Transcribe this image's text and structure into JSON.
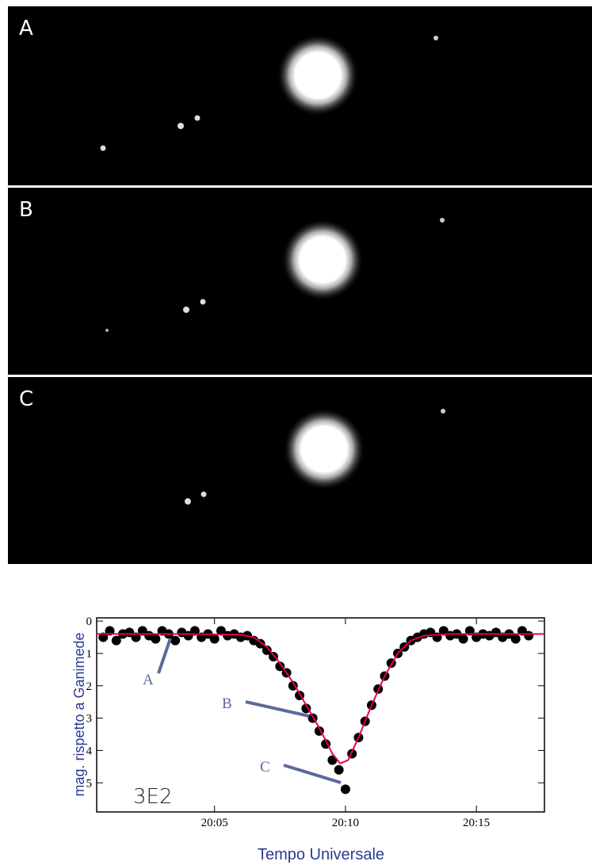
{
  "panels": [
    "A",
    "B",
    "C"
  ],
  "chart_data": {
    "type": "scatter",
    "xlabel": "Tempo Universale",
    "ylabel": "mag. rispetto a Ganimede",
    "annotations": [
      "A",
      "B",
      "C",
      "3E2"
    ],
    "xlim": [
      0.5,
      17.6
    ],
    "ylim": [
      5.9,
      -0.1
    ],
    "xticks": [
      {
        "value": 5,
        "label": "20:05"
      },
      {
        "value": 10,
        "label": "20:10"
      },
      {
        "value": 15,
        "label": "20:15"
      }
    ],
    "yticks": [
      0,
      1,
      2,
      3,
      4,
      5
    ],
    "series": [
      {
        "type": "scatter",
        "color": "#000000",
        "x": [
          0.75,
          1,
          1.25,
          1.5,
          1.75,
          2,
          2.25,
          2.5,
          2.75,
          3,
          3.25,
          3.5,
          3.75,
          4,
          4.25,
          4.5,
          4.75,
          5,
          5.25,
          5.5,
          5.75,
          6,
          6.25,
          6.5,
          6.75,
          7,
          7.25,
          7.5,
          7.75,
          8,
          8.25,
          8.5,
          8.75,
          9,
          9.25,
          9.5,
          9.75,
          10,
          10.25,
          10.5,
          10.75,
          11,
          11.25,
          11.5,
          11.75,
          12,
          12.25,
          12.5,
          12.75,
          13,
          13.25,
          13.5,
          13.75,
          14,
          14.25,
          14.5,
          14.75,
          15,
          15.25,
          15.5,
          15.75,
          16,
          16.25,
          16.5,
          16.75,
          17
        ],
        "values": [
          0.5,
          0.3,
          0.6,
          0.4,
          0.35,
          0.5,
          0.3,
          0.45,
          0.55,
          0.3,
          0.4,
          0.6,
          0.35,
          0.45,
          0.3,
          0.5,
          0.4,
          0.55,
          0.3,
          0.45,
          0.4,
          0.5,
          0.45,
          0.6,
          0.7,
          0.9,
          1.1,
          1.4,
          1.6,
          2.0,
          2.3,
          2.7,
          3.0,
          3.4,
          3.8,
          4.3,
          4.6,
          5.2,
          4.1,
          3.6,
          3.1,
          2.6,
          2.1,
          1.7,
          1.3,
          1.0,
          0.8,
          0.6,
          0.5,
          0.4,
          0.35,
          0.5,
          0.3,
          0.45,
          0.4,
          0.55,
          0.3,
          0.5,
          0.4,
          0.45,
          0.35,
          0.5,
          0.4,
          0.55,
          0.3,
          0.45
        ]
      },
      {
        "type": "line",
        "color": "#e8004a",
        "x": [
          0.5,
          2,
          4,
          6,
          6.5,
          7,
          7.5,
          8,
          8.5,
          9,
          9.5,
          9.8,
          10.1,
          10.5,
          11,
          11.5,
          12,
          12.5,
          13,
          14,
          17.6
        ],
        "values": [
          0.4,
          0.4,
          0.4,
          0.42,
          0.5,
          0.8,
          1.3,
          1.9,
          2.6,
          3.3,
          4.1,
          4.4,
          4.3,
          3.6,
          2.6,
          1.7,
          1.0,
          0.6,
          0.45,
          0.4,
          0.4
        ]
      }
    ]
  }
}
